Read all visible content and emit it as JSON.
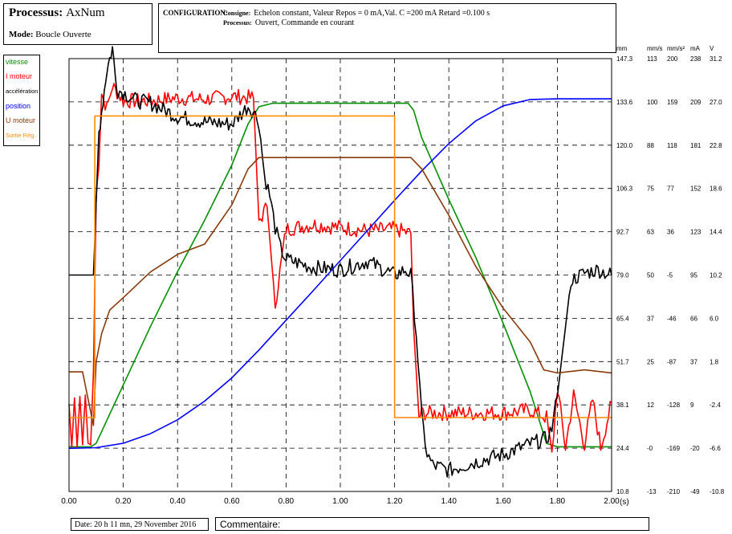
{
  "process": {
    "label": "Processus:",
    "value": "AxNum",
    "mode_label": "Mode:",
    "mode_value": "Boucle Ouverte"
  },
  "configuration": {
    "label": "CONFIGURATION:",
    "line1_key": "Consigne:",
    "line1_value": "Echelon constant, Valeur Repos = 0 mA,Val. C =200 mA Retard =0.100 s",
    "line2_key": "Processus:",
    "line2_value": "Ouvert, Commande en courant"
  },
  "footer": {
    "date": "Date: 20 h 11 mn, 29 November 2016",
    "comment_label": "Commentaire:"
  },
  "chart_data": {
    "type": "line",
    "x_label": "(s)",
    "xlim": [
      0.0,
      2.0
    ],
    "x_ticks": [
      "0.00",
      "0.20",
      "0.40",
      "0.60",
      "0.80",
      "1.00",
      "1.20",
      "1.40",
      "1.60",
      "1.80",
      "2.00"
    ],
    "grid": true,
    "legend_position": "left",
    "axes": [
      {
        "unit": "mm",
        "ticks": [
          "147.3",
          "133.6",
          "120.0",
          "106.3",
          "92.7",
          "79.0",
          "65.4",
          "51.7",
          "38.1",
          "24.4",
          "10.8"
        ]
      },
      {
        "unit": "mm/s",
        "ticks": [
          "113",
          "100",
          "88",
          "75",
          "63",
          "50",
          "37",
          "25",
          "12",
          "-0",
          "-13"
        ]
      },
      {
        "unit": "mm/s²",
        "ticks": [
          "200",
          "159",
          "118",
          "77",
          "36",
          "-5",
          "-46",
          "-87",
          "-128",
          "-169",
          "-210"
        ]
      },
      {
        "unit": "mA",
        "ticks": [
          "238",
          "209",
          "181",
          "152",
          "123",
          "95",
          "66",
          "37",
          "9",
          "-20",
          "-49"
        ]
      },
      {
        "unit": "V",
        "ticks": [
          "31.2",
          "27.0",
          "22.8",
          "18.6",
          "14.4",
          "10.2",
          "6.0",
          "1.8",
          "-2.4",
          "-6.6",
          "-10.8"
        ]
      }
    ],
    "series": [
      {
        "name": "vitesse",
        "unit": "mm/s",
        "color": "#009000",
        "x": [
          0,
          0.08,
          0.1,
          0.2,
          0.3,
          0.4,
          0.5,
          0.6,
          0.66,
          0.7,
          0.75,
          0.8,
          1.0,
          1.2,
          1.25,
          1.27,
          1.3,
          1.4,
          1.5,
          1.6,
          1.7,
          1.76,
          1.8,
          2.0
        ],
        "y": [
          0,
          0,
          1,
          18,
          35,
          51,
          66,
          82,
          94,
          99,
          100,
          100,
          100,
          100,
          100,
          98,
          90,
          72,
          55,
          36,
          16,
          1,
          0,
          0
        ]
      },
      {
        "name": "I moteur",
        "unit": "mA",
        "color": "#ff0000",
        "note": "noisy",
        "x": [
          0,
          0.01,
          0.02,
          0.03,
          0.04,
          0.05,
          0.06,
          0.07,
          0.08,
          0.09,
          0.1,
          0.11,
          0.12,
          0.14,
          0.16,
          0.2,
          0.3,
          0.4,
          0.5,
          0.6,
          0.68,
          0.7,
          0.73,
          0.76,
          0.8,
          0.9,
          1.0,
          1.1,
          1.2,
          1.26,
          1.27,
          1.29,
          1.3,
          1.4,
          1.5,
          1.6,
          1.7,
          1.76,
          1.78,
          1.8,
          1.83,
          1.86,
          1.9,
          1.93,
          1.96,
          2.0
        ],
        "y": [
          9,
          -20,
          13,
          -20,
          14,
          -18,
          15,
          -17,
          -18,
          30,
          145,
          170,
          215,
          205,
          220,
          210,
          210,
          212,
          211,
          213,
          212,
          130,
          140,
          75,
          125,
          128,
          126,
          124,
          125,
          122,
          60,
          0,
          3,
          3,
          3,
          3,
          5,
          0,
          -25,
          20,
          -20,
          15,
          -18,
          12,
          -20,
          10
        ]
      },
      {
        "name": "accélération",
        "unit": "mm/s²",
        "color": "#000000",
        "note": "noisy",
        "x": [
          0,
          0.08,
          0.09,
          0.1,
          0.11,
          0.12,
          0.13,
          0.14,
          0.15,
          0.16,
          0.17,
          0.18,
          0.2,
          0.25,
          0.3,
          0.4,
          0.5,
          0.6,
          0.66,
          0.68,
          0.7,
          0.72,
          0.74,
          0.76,
          0.78,
          0.8,
          0.9,
          1.0,
          1.1,
          1.2,
          1.24,
          1.26,
          1.28,
          1.3,
          1.32,
          1.34,
          1.4,
          1.5,
          1.6,
          1.7,
          1.76,
          1.78,
          1.8,
          1.85,
          1.9,
          1.95,
          2.0
        ],
        "y": [
          -5,
          -5,
          -5,
          60,
          130,
          150,
          170,
          190,
          200,
          210,
          185,
          170,
          168,
          160,
          158,
          145,
          140,
          138,
          155,
          150,
          140,
          90,
          70,
          40,
          20,
          10,
          2,
          0,
          8,
          -5,
          0,
          -5,
          -60,
          -140,
          -175,
          -185,
          -190,
          -182,
          -175,
          -165,
          -160,
          -150,
          -120,
          -10,
          -3,
          0,
          -5
        ]
      },
      {
        "name": "position",
        "unit": "mm",
        "color": "#0000ff",
        "x": [
          0,
          0.1,
          0.2,
          0.3,
          0.4,
          0.5,
          0.6,
          0.7,
          0.8,
          0.9,
          1.0,
          1.1,
          1.2,
          1.3,
          1.4,
          1.5,
          1.6,
          1.7,
          1.8,
          2.0
        ],
        "y": [
          24.4,
          24.6,
          26.0,
          29.0,
          33.4,
          39.3,
          46.6,
          55.4,
          64.8,
          74.1,
          83.6,
          93.1,
          102.6,
          111.9,
          120.5,
          127.7,
          132.4,
          134.4,
          134.6,
          134.6
        ]
      },
      {
        "name": "U moteur",
        "unit": "V",
        "color": "#8b3a0a",
        "x": [
          0,
          0.05,
          0.09,
          0.1,
          0.12,
          0.15,
          0.2,
          0.3,
          0.4,
          0.5,
          0.6,
          0.66,
          0.7,
          0.8,
          1.0,
          1.2,
          1.26,
          1.3,
          1.4,
          1.5,
          1.6,
          1.7,
          1.75,
          1.8,
          1.9,
          2.0
        ],
        "y": [
          0.8,
          0.8,
          -4.4,
          1.8,
          4.5,
          6.8,
          8.0,
          10.5,
          12.2,
          13.2,
          17.0,
          20.5,
          21.6,
          21.6,
          21.6,
          21.6,
          21.6,
          20.5,
          16.0,
          11.0,
          7.0,
          3.7,
          1.0,
          0.7,
          1.0,
          0.7
        ]
      },
      {
        "name": "Sortie Rég.",
        "unit": "mA",
        "color": "#ff8c00",
        "x": [
          0,
          0.095,
          0.095,
          1.2,
          1.2,
          2.0
        ],
        "y": [
          0,
          0,
          200,
          200,
          0,
          0
        ]
      }
    ]
  }
}
